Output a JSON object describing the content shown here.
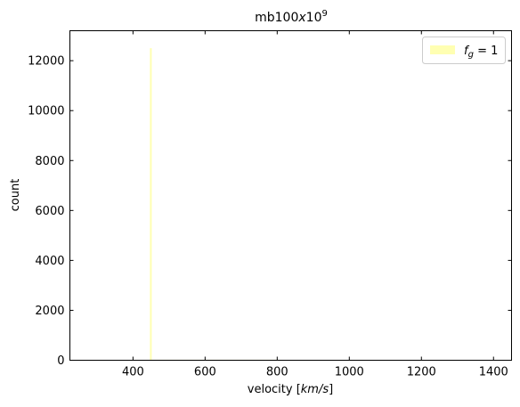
{
  "chart_data": {
    "type": "bar",
    "title": "mb100x10⁹",
    "title_parts": {
      "base": "mb100",
      "x": "x",
      "ten": "10",
      "exp": "9"
    },
    "xlabel": "velocity [km/s]",
    "xlabel_parts": {
      "prefix": "velocity [",
      "unit": "km/s",
      "suffix": "]"
    },
    "ylabel": "count",
    "xlim": [
      225,
      1450
    ],
    "ylim": [
      0,
      13200
    ],
    "xticks": [
      400,
      600,
      800,
      1000,
      1200,
      1400
    ],
    "yticks": [
      0,
      2000,
      4000,
      6000,
      8000,
      10000,
      12000
    ],
    "grid": false,
    "legend_position": "top-right",
    "series": [
      {
        "name": "f_g = 1",
        "legend_label": {
          "f": "f",
          "sub": "g",
          "rest": " = 1"
        },
        "color": "#ffff66",
        "alpha": 0.5,
        "bins": [
          {
            "x0": 447,
            "x1": 452,
            "count": 12500
          },
          {
            "x0": 452,
            "x1": 800,
            "count": 20
          }
        ]
      }
    ]
  }
}
